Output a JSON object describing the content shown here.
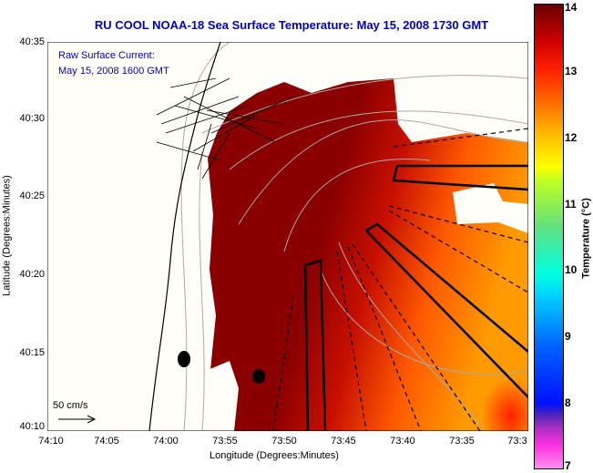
{
  "title": "RU COOL  NOAA-18  Sea Surface Temperature:  May 15, 2008 1730 GMT",
  "legend": {
    "line1": "Raw Surface Current:",
    "line2": "May 15, 2008 1600 GMT",
    "scale": "50 cm/s"
  },
  "axes": {
    "xlabel": "Longitude (Degrees:Minutes)",
    "ylabel": "Latitude (Degrees:Minutes)",
    "xticks": [
      "74:10",
      "74:05",
      "74:00",
      "73:55",
      "73:50",
      "73:45",
      "73:40",
      "73:35",
      "73:3"
    ],
    "yticks": [
      "40:35",
      "40:30",
      "40:25",
      "40:20",
      "40:15",
      "40:10"
    ]
  },
  "colorbar": {
    "label": "Temperature (°C)",
    "ticks": [
      "14",
      "13",
      "12",
      "11",
      "10",
      "9",
      "8",
      "7"
    ],
    "min": 7,
    "max": 14
  }
}
